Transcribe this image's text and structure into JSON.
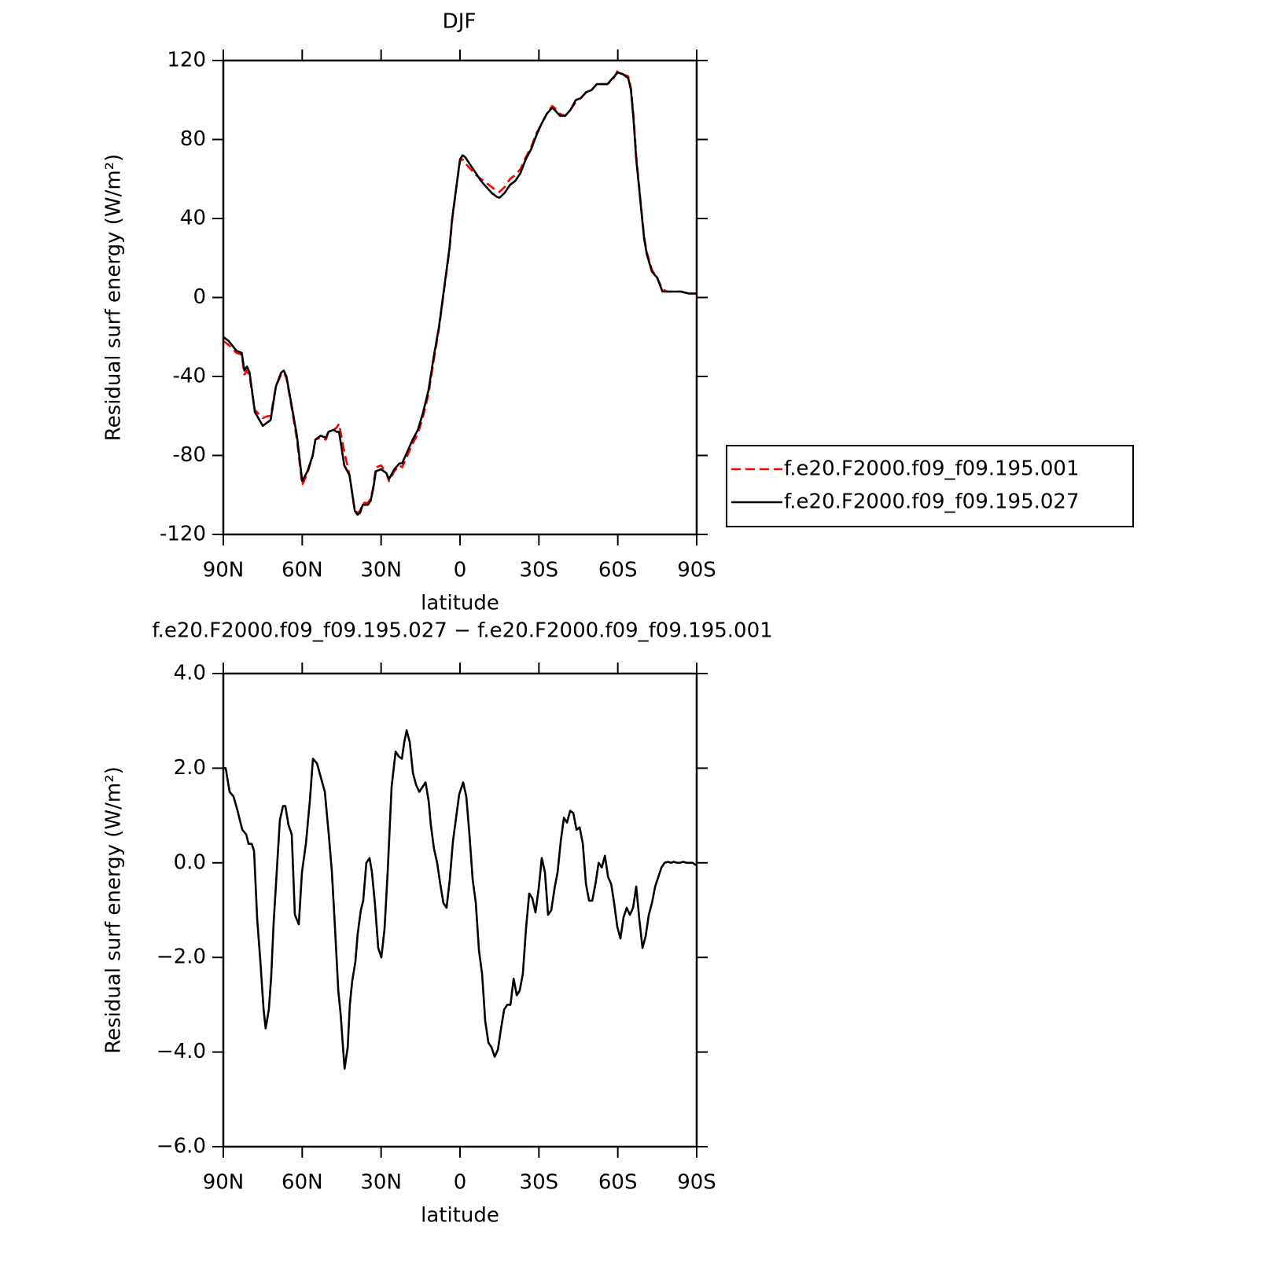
{
  "chart_data": [
    {
      "type": "line",
      "title": "DJF",
      "xlabel": "latitude",
      "ylabel": "Residual surf energy (W/m²)",
      "xlim": [
        90,
        -90
      ],
      "ylim": [
        -120,
        120
      ],
      "xticks": [
        {
          "value": 90,
          "label": "90N"
        },
        {
          "value": 60,
          "label": "60N"
        },
        {
          "value": 30,
          "label": "30N"
        },
        0,
        {
          "value": -30,
          "label": "30S"
        },
        {
          "value": -60,
          "label": "60S"
        },
        {
          "value": -90,
          "label": "90S"
        }
      ],
      "yticks": [
        -120,
        -80,
        -40,
        0,
        40,
        80,
        120
      ],
      "legend": "right",
      "x": [
        90,
        88,
        85,
        83,
        82,
        81,
        80,
        78,
        75,
        73,
        72,
        70,
        68,
        67,
        66,
        64,
        62,
        60,
        58,
        56,
        55,
        53,
        51,
        50,
        48,
        47,
        46,
        44,
        42,
        40,
        39,
        38,
        37,
        35,
        34,
        33,
        32,
        30,
        28,
        27,
        25,
        23,
        22,
        20,
        18,
        16,
        14,
        12,
        10,
        8,
        6,
        4,
        3,
        1,
        0,
        -1,
        -2,
        -4,
        -6,
        -8,
        -10,
        -12,
        -14,
        -15,
        -17,
        -19,
        -21,
        -23,
        -25,
        -27,
        -29,
        -31,
        -33,
        -35,
        -36,
        -38,
        -40,
        -42,
        -44,
        -46,
        -48,
        -50,
        -52,
        -54,
        -56,
        -58,
        -60,
        -62,
        -64,
        -65,
        -66,
        -67,
        -68,
        -69,
        -70,
        -71,
        -73,
        -75,
        -77,
        -79,
        -81,
        -84,
        -87,
        -90
      ],
      "series": [
        {
          "name": "f.e20.F2000.f09_f09.195.001",
          "color": "#ff0000",
          "dash": true,
          "values": [
            -22,
            -24,
            -28,
            -29,
            -39,
            -37,
            -40,
            -57,
            -61,
            -60,
            -60,
            -45,
            -39,
            -38,
            -41,
            -56,
            -72,
            -95,
            -89,
            -80,
            -72,
            -71,
            -72,
            -68,
            -67,
            -66,
            -64,
            -78,
            -90,
            -108,
            -109,
            -108,
            -104,
            -104,
            -102,
            -96,
            -86,
            -85,
            -89,
            -93,
            -88,
            -85,
            -86,
            -80,
            -74,
            -69,
            -60,
            -49,
            -32,
            -16,
            4,
            24,
            39,
            60,
            69,
            70,
            68,
            65,
            62,
            60,
            58,
            56,
            54,
            53.5,
            56,
            60,
            62,
            65,
            71,
            76,
            83,
            88,
            93,
            97,
            96,
            93,
            92,
            95,
            99,
            101,
            104,
            105,
            108,
            108,
            108,
            110,
            115,
            113,
            112,
            106,
            92,
            72,
            58,
            44,
            31,
            23,
            14,
            10,
            4,
            3,
            3,
            3,
            2,
            2
          ]
        },
        {
          "name": "f.e20.F2000.f09_f09.195.027",
          "color": "#000000",
          "dash": false,
          "values": [
            -20,
            -22,
            -27,
            -28,
            -37,
            -35,
            -38,
            -58,
            -65,
            -63,
            -62,
            -45,
            -38,
            -37,
            -40,
            -55,
            -70,
            -93,
            -88,
            -80,
            -72,
            -70,
            -71,
            -68,
            -67,
            -68,
            -68,
            -85,
            -90,
            -108,
            -110,
            -109,
            -105,
            -105,
            -103,
            -97,
            -88,
            -87,
            -89,
            -92,
            -87,
            -84,
            -84,
            -78,
            -72,
            -67,
            -58,
            -47,
            -30,
            -15,
            5,
            25,
            40,
            60,
            70,
            72,
            71,
            67,
            63,
            59,
            56,
            53,
            51,
            50.5,
            53,
            57,
            59,
            63,
            70,
            75,
            82,
            88,
            93,
            96,
            95,
            92,
            92,
            95,
            100,
            101,
            104,
            105,
            108,
            108,
            108,
            111,
            114,
            113,
            111,
            105,
            90,
            70,
            57,
            43,
            30,
            22,
            13,
            10,
            3,
            3,
            3,
            3,
            2,
            2
          ]
        }
      ]
    },
    {
      "type": "line",
      "title": "f.e20.F2000.f09_f09.195.027 − f.e20.F2000.f09_f09.195.001",
      "xlabel": "latitude",
      "ylabel": "Residual surf energy (W/m²)",
      "xlim": [
        90,
        -90
      ],
      "ylim": [
        -6,
        4
      ],
      "xticks": [
        {
          "value": 90,
          "label": "90N"
        },
        {
          "value": 60,
          "label": "60N"
        },
        {
          "value": 30,
          "label": "30N"
        },
        0,
        {
          "value": -30,
          "label": "30S"
        },
        {
          "value": -60,
          "label": "60S"
        },
        {
          "value": -90,
          "label": "90S"
        }
      ],
      "yticks": [
        {
          "value": -6,
          "label": "−6.0"
        },
        {
          "value": -4,
          "label": "−4.0"
        },
        {
          "value": -2,
          "label": "−2.0"
        },
        {
          "value": 0,
          "label": "0.0"
        },
        {
          "value": 2,
          "label": "2.0"
        },
        {
          "value": 4,
          "label": "4.0"
        }
      ],
      "x": [
        90,
        89.1,
        87.6,
        86.1,
        84.6,
        82.8,
        81.3,
        80.4,
        79.2,
        78.3,
        77.1,
        75.9,
        74.7,
        73.9,
        72.7,
        71.8,
        70.9,
        69.7,
        68.5,
        67.3,
        66.4,
        65.2,
        64.0,
        62.8,
        61.3,
        60.1,
        58.6,
        57.1,
        55.9,
        54.4,
        52.9,
        51.4,
        49.9,
        48.7,
        47.5,
        46.3,
        45.4,
        44.5,
        43.9,
        42.7,
        41.9,
        41.0,
        39.8,
        38.9,
        37.7,
        36.8,
        35.6,
        34.4,
        33.5,
        32.3,
        31.1,
        29.9,
        28.7,
        27.5,
        26.0,
        24.5,
        23.3,
        22.1,
        21.2,
        20.3,
        19.1,
        17.9,
        16.7,
        15.5,
        14.3,
        13.1,
        11.9,
        11.1,
        9.9,
        8.7,
        7.5,
        6.3,
        5.1,
        3.9,
        2.7,
        1.5,
        0.3,
        -1.2,
        -2.4,
        -3.6,
        -4.8,
        -6.0,
        -7.2,
        -8.4,
        -9.6,
        -10.8,
        -12.0,
        -13.2,
        -14.4,
        -15.6,
        -16.8,
        -18.0,
        -19.2,
        -20.4,
        -21.6,
        -22.7,
        -23.9,
        -25.1,
        -26.3,
        -27.5,
        -28.7,
        -29.9,
        -31.1,
        -32.3,
        -33.5,
        -34.7,
        -35.9,
        -37.1,
        -38.3,
        -39.5,
        -40.7,
        -41.9,
        -43.1,
        -44.3,
        -45.5,
        -46.7,
        -47.9,
        -49.1,
        -50.3,
        -51.5,
        -52.7,
        -53.9,
        -55.1,
        -56.3,
        -57.5,
        -58.6,
        -59.8,
        -61.0,
        -62.2,
        -63.4,
        -64.6,
        -65.8,
        -67.0,
        -68.2,
        -69.4,
        -70.6,
        -71.8,
        -73.0,
        -74.2,
        -75.4,
        -76.6,
        -77.8,
        -79.0,
        -80.2,
        -81.3,
        -82.5,
        -83.7,
        -84.9,
        -86.1,
        -87.3,
        -88.5,
        -89.7
      ],
      "series": [
        {
          "color": "#000000",
          "values": [
            2.0,
            2.0,
            1.5,
            1.4,
            1.1,
            0.7,
            0.6,
            0.4,
            0.4,
            0.25,
            -1.2,
            -2.1,
            -3.1,
            -3.5,
            -3.1,
            -2.4,
            -1.3,
            -0.2,
            0.9,
            1.2,
            1.2,
            0.8,
            0.6,
            -1.1,
            -1.3,
            -0.2,
            0.4,
            1.3,
            2.2,
            2.1,
            1.8,
            1.5,
            0.6,
            -0.2,
            -1.4,
            -2.7,
            -3.2,
            -3.9,
            -4.35,
            -3.9,
            -3.0,
            -2.5,
            -2.1,
            -1.5,
            -1.0,
            -0.8,
            0.0,
            0.1,
            -0.2,
            -0.9,
            -1.8,
            -2.0,
            -1.4,
            -0.2,
            1.6,
            2.35,
            2.25,
            2.2,
            2.55,
            2.8,
            2.55,
            1.9,
            1.65,
            1.5,
            1.6,
            1.7,
            1.3,
            0.8,
            0.3,
            0.0,
            -0.45,
            -0.85,
            -0.95,
            -0.35,
            0.45,
            0.95,
            1.45,
            1.7,
            1.4,
            0.6,
            -0.35,
            -0.85,
            -1.85,
            -2.35,
            -3.35,
            -3.8,
            -3.9,
            -4.1,
            -3.95,
            -3.5,
            -3.1,
            -3.0,
            -3.0,
            -2.45,
            -2.8,
            -2.7,
            -2.35,
            -1.4,
            -0.65,
            -0.75,
            -1.05,
            -0.55,
            0.1,
            -0.2,
            -1.1,
            -1.0,
            -0.55,
            -0.2,
            0.45,
            0.95,
            0.85,
            1.1,
            1.05,
            0.7,
            0.75,
            0.4,
            -0.45,
            -0.8,
            -0.8,
            -0.45,
            0.0,
            -0.1,
            0.15,
            -0.3,
            -0.45,
            -0.85,
            -1.35,
            -1.6,
            -1.15,
            -0.95,
            -1.1,
            -0.95,
            -0.5,
            -1.2,
            -1.8,
            -1.55,
            -1.1,
            -0.85,
            -0.5,
            -0.3,
            -0.1,
            0.0,
            0.02,
            0.0,
            0.02,
            0.0,
            0.0,
            0.02,
            0.0,
            0.0,
            0.0,
            -0.05
          ]
        }
      ]
    }
  ]
}
